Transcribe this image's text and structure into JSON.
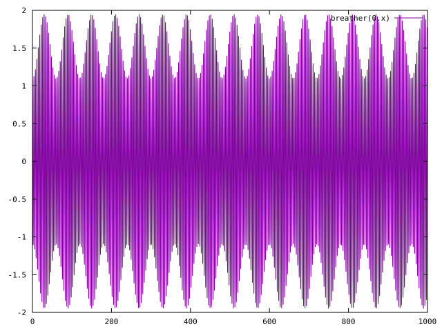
{
  "chart_data": {
    "type": "line",
    "title": "",
    "xlabel": "",
    "ylabel": "",
    "xlim": [
      0,
      1000
    ],
    "ylim": [
      -2,
      2
    ],
    "x_ticks": [
      0,
      200,
      400,
      600,
      800,
      1000
    ],
    "y_ticks": [
      -2,
      -1.5,
      -1,
      -0.5,
      0,
      0.5,
      1,
      1.5,
      2
    ],
    "x_tick_labels": [
      "0",
      "200",
      "400",
      "600",
      "800",
      "1000"
    ],
    "y_tick_labels": [
      "-2",
      "-1.5",
      "-1",
      "-0.5",
      "0",
      "0.5",
      "1",
      "1.5",
      "2"
    ],
    "grid": false,
    "legend_position": "top-right",
    "series": [
      {
        "name": "breather(0,x)",
        "color": "#8000a0",
        "description": "Rapid oscillation spanning roughly -1.9 to 1.9, with a beat-like envelope whose peaks recur about every 60 x-units.",
        "carrier_period": 3.7,
        "envelope_period": 60,
        "amplitude_min": 1.1,
        "amplitude_max": 1.95
      }
    ]
  }
}
